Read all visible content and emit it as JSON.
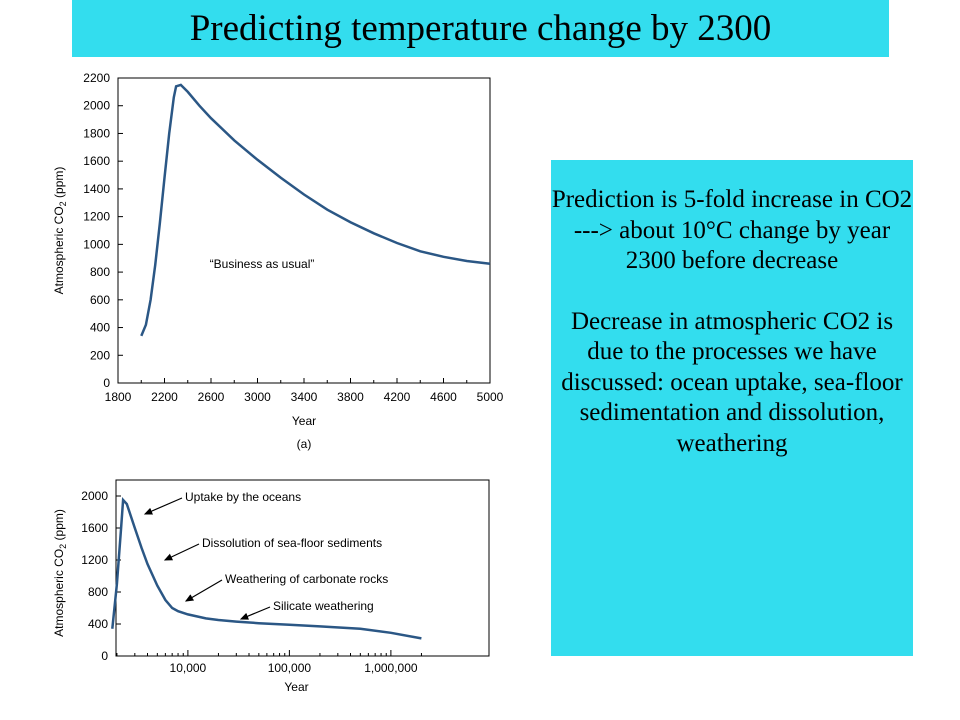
{
  "slide": {
    "title": "Predicting  temperature change by 2300",
    "note_paragraph_1": "Prediction is 5-fold increase in CO2 ---> about 10°C change by year 2300 before decrease",
    "note_paragraph_2": "Decrease in atmospheric CO2 is due to the processes we have discussed:  ocean uptake, sea-floor sedimentation and dissolution, weathering"
  },
  "colors": {
    "title_bg": "#33ddee",
    "note_bg": "#33ddee",
    "curve": "#2b5785"
  },
  "chart_data": [
    {
      "type": "line",
      "panel_label": "(a)",
      "xlabel": "Year",
      "ylabel": "Atmospheric CO2 (ppm)",
      "xlim": [
        1800,
        5000
      ],
      "ylim": [
        0,
        2200
      ],
      "x_ticks": [
        1800,
        2200,
        2600,
        3000,
        3400,
        3800,
        4200,
        4600,
        5000
      ],
      "y_ticks": [
        0,
        200,
        400,
        600,
        800,
        1000,
        1200,
        1400,
        1600,
        1800,
        2000,
        2200
      ],
      "annotation": "“Business as usual”",
      "x": [
        2000,
        2040,
        2080,
        2120,
        2160,
        2200,
        2240,
        2280,
        2300,
        2340,
        2400,
        2500,
        2600,
        2800,
        3000,
        3200,
        3400,
        3600,
        3800,
        4000,
        4200,
        4400,
        4600,
        4800,
        5000
      ],
      "y": [
        340,
        420,
        600,
        850,
        1150,
        1480,
        1800,
        2060,
        2140,
        2150,
        2100,
        2000,
        1910,
        1750,
        1610,
        1480,
        1360,
        1250,
        1160,
        1080,
        1010,
        950,
        910,
        880,
        860
      ]
    },
    {
      "type": "line",
      "x_scale": "log",
      "xlabel": "Year",
      "ylabel": "Atmospheric CO2 (ppm)",
      "ylim": [
        0,
        2200
      ],
      "x_ticks": [
        "10,000",
        "100,000",
        "1,000,000"
      ],
      "y_ticks": [
        0,
        400,
        800,
        1200,
        1600,
        2000
      ],
      "annotations": [
        "Uptake by the oceans",
        "Dissolution of sea-floor sediments",
        "Weathering of carbonate rocks",
        "Silicate weathering"
      ],
      "x": [
        1800,
        2000,
        2200,
        2300,
        2500,
        3000,
        3500,
        4000,
        5000,
        6000,
        7000,
        8000,
        10000,
        15000,
        20000,
        30000,
        50000,
        100000,
        200000,
        500000,
        1000000,
        2000000
      ],
      "y": [
        340,
        900,
        1600,
        1950,
        1900,
        1600,
        1350,
        1150,
        880,
        700,
        600,
        560,
        520,
        470,
        450,
        430,
        410,
        390,
        370,
        340,
        290,
        220
      ]
    }
  ]
}
